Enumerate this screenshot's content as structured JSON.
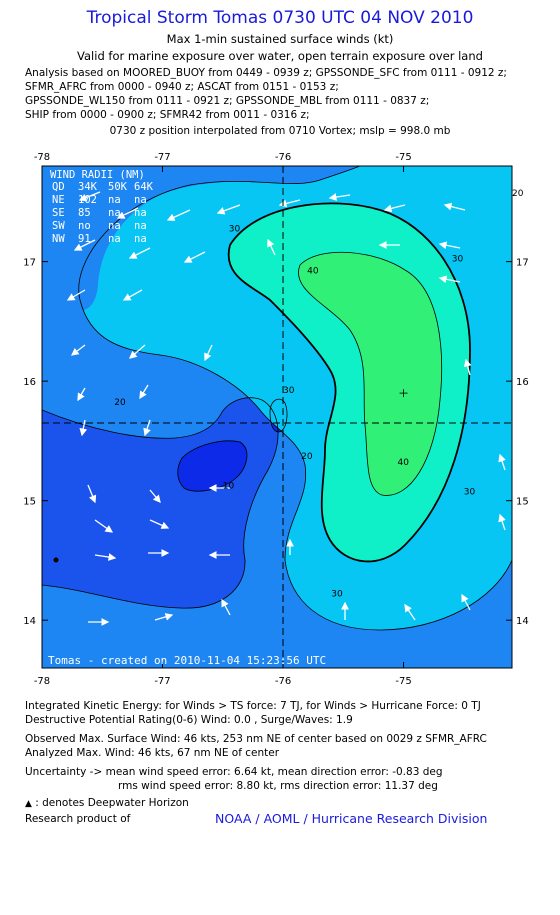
{
  "header": {
    "title": "Tropical Storm Tomas 0730 UTC 04 NOV 2010",
    "subtitle1": "Max 1-min sustained surface winds (kt)",
    "subtitle2": "Valid for marine exposure over water, open terrain exposure over land",
    "sources": [
      "Analysis based on MOORED_BUOY from 0449 - 0939 z; GPSSONDE_SFC from 0111 - 0912 z;",
      "SFMR_AFRC from 0000 - 0940 z; ASCAT from 0151 - 0153 z;",
      "GPSSONDE_WL150 from 0111 - 0921 z; GPSSONDE_MBL from 0111 - 0837 z;",
      "SHIP from 0000 - 0900 z; SFMR42 from 0011 - 0316 z;"
    ],
    "position_note": "0730 z position interpolated from 0710 Vortex; mslp = 998.0 mb"
  },
  "wind_radii": {
    "title": "WIND RADII (NM)",
    "header": [
      "QD",
      "34K",
      "50K",
      "64K"
    ],
    "rows": [
      [
        "NE",
        "102",
        "na",
        "na"
      ],
      [
        "SE",
        "85",
        "na",
        "na"
      ],
      [
        "SW",
        "no",
        "na",
        "na"
      ],
      [
        "NW",
        "91",
        "na",
        "na"
      ]
    ]
  },
  "plot_footer": "Tomas - created on 2010-11-04 15:23:56 UTC",
  "chart_data": {
    "type": "contour",
    "x_ticks": [
      "-78",
      "-77",
      "-76",
      "-75"
    ],
    "y_ticks": [
      "17",
      "16",
      "15",
      "14"
    ],
    "xlim": [
      -78.0,
      -74.1
    ],
    "ylim": [
      13.6,
      17.8
    ],
    "center": {
      "lon": -76.0,
      "lat": 15.65
    },
    "max_wind_marker": {
      "lon": -75.0,
      "lat": 15.9
    },
    "contour_labels": [
      {
        "text": "20",
        "lon": -74.1,
        "lat": 17.55
      },
      {
        "text": "30",
        "lon": -76.45,
        "lat": 17.25
      },
      {
        "text": "30",
        "lon": -74.6,
        "lat": 17.0
      },
      {
        "text": "40",
        "lon": -75.8,
        "lat": 16.9
      },
      {
        "text": "30",
        "lon": -76.0,
        "lat": 15.9
      },
      {
        "text": "20",
        "lon": -77.4,
        "lat": 15.8
      },
      {
        "text": "20",
        "lon": -75.85,
        "lat": 15.35
      },
      {
        "text": "10",
        "lon": -76.5,
        "lat": 15.1
      },
      {
        "text": "30",
        "lon": -74.5,
        "lat": 15.05
      },
      {
        "text": "40",
        "lon": -75.05,
        "lat": 15.3
      },
      {
        "text": "30",
        "lon": -75.6,
        "lat": 14.2
      }
    ],
    "colors": {
      "level_lt10": "#0c2ae8",
      "level_10": "#1a54ec",
      "level_20": "#1e86f2",
      "level_30": "#08c6f4",
      "level_40": "#10f0c8",
      "level_45": "#30f078"
    }
  },
  "footer": {
    "ike": "Integrated Kinetic Energy:  for Winds > TS force: 7 TJ,  for Winds > Hurricane Force: 0 TJ",
    "dpr": "Destructive Potential Rating(0-6)   Wind: 0.0 , Surge/Waves: 1.9",
    "obs": "Observed Max. Surface Wind: 46 kts, 253 nm NE of center based on 0029 z SFMR_AFRC",
    "analyzed": "Analyzed Max. Wind: 46 kts, 67 nm NE of center",
    "uncert1": "Uncertainty -> mean wind speed error: 6.64 kt,   mean direction error:  -0.83 deg",
    "uncert2": "rms wind speed error: 8.80 kt,   rms direction error: 11.37 deg",
    "dwh": " : denotes Deepwater Horizon",
    "research": "Research product of",
    "org": "NOAA / AOML / Hurricane Research Division"
  }
}
